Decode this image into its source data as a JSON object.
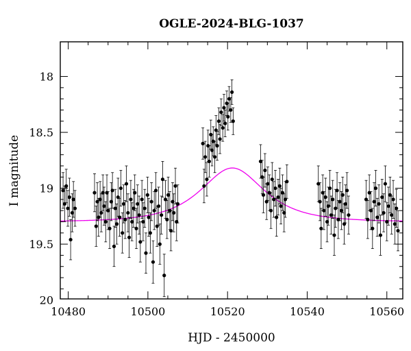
{
  "chart_data": {
    "type": "scatter",
    "title": "OGLE-2024-BLG-1037",
    "xlabel": "HJD - 2450000",
    "ylabel": "I magnitude",
    "xlim": [
      10478,
      10564
    ],
    "ylim": [
      19.99,
      17.69
    ],
    "y_inverted": true,
    "x_ticks": [
      10480,
      10500,
      10520,
      10540,
      10560
    ],
    "x_tick_labels": [
      "10480",
      "10500",
      "10520",
      "10540",
      "10560"
    ],
    "y_ticks": [
      18,
      18.5,
      19,
      19.5,
      20
    ],
    "y_tick_labels": [
      "18",
      "18.5",
      "19",
      "19.5",
      "20"
    ],
    "grid": false,
    "colors": {
      "data": "#000000",
      "model": "#ee00ee"
    },
    "series": [
      {
        "type": "errorbar",
        "points": [
          {
            "x": 10478.7,
            "y": 19.02,
            "err": 0.16
          },
          {
            "x": 10479.1,
            "y": 19.14,
            "err": 0.16
          },
          {
            "x": 10479.5,
            "y": 18.98,
            "err": 0.15
          },
          {
            "x": 10479.9,
            "y": 19.18,
            "err": 0.16
          },
          {
            "x": 10480.3,
            "y": 19.08,
            "err": 0.17
          },
          {
            "x": 10480.6,
            "y": 19.46,
            "err": 0.18
          },
          {
            "x": 10481.0,
            "y": 19.22,
            "err": 0.17
          },
          {
            "x": 10481.3,
            "y": 19.1,
            "err": 0.16
          },
          {
            "x": 10481.7,
            "y": 19.18,
            "err": 0.16
          },
          {
            "x": 10486.6,
            "y": 19.04,
            "err": 0.17
          },
          {
            "x": 10487.0,
            "y": 19.34,
            "err": 0.18
          },
          {
            "x": 10487.3,
            "y": 19.12,
            "err": 0.17
          },
          {
            "x": 10487.6,
            "y": 19.26,
            "err": 0.17
          },
          {
            "x": 10488.0,
            "y": 19.1,
            "err": 0.16
          },
          {
            "x": 10488.3,
            "y": 19.22,
            "err": 0.17
          },
          {
            "x": 10488.7,
            "y": 19.04,
            "err": 0.16
          },
          {
            "x": 10489.0,
            "y": 19.16,
            "err": 0.17
          },
          {
            "x": 10489.4,
            "y": 19.3,
            "err": 0.18
          },
          {
            "x": 10489.7,
            "y": 19.04,
            "err": 0.16
          },
          {
            "x": 10490.0,
            "y": 19.2,
            "err": 0.17
          },
          {
            "x": 10490.4,
            "y": 19.36,
            "err": 0.18
          },
          {
            "x": 10490.8,
            "y": 19.12,
            "err": 0.17
          },
          {
            "x": 10491.1,
            "y": 19.02,
            "err": 0.16
          },
          {
            "x": 10491.5,
            "y": 19.52,
            "err": 0.18
          },
          {
            "x": 10491.8,
            "y": 19.18,
            "err": 0.17
          },
          {
            "x": 10492.2,
            "y": 19.32,
            "err": 0.18
          },
          {
            "x": 10492.5,
            "y": 19.08,
            "err": 0.17
          },
          {
            "x": 10492.9,
            "y": 19.26,
            "err": 0.17
          },
          {
            "x": 10493.2,
            "y": 19.0,
            "err": 0.16
          },
          {
            "x": 10493.6,
            "y": 19.4,
            "err": 0.18
          },
          {
            "x": 10493.9,
            "y": 19.14,
            "err": 0.17
          },
          {
            "x": 10494.3,
            "y": 19.28,
            "err": 0.17
          },
          {
            "x": 10494.6,
            "y": 18.96,
            "err": 0.16
          },
          {
            "x": 10495.0,
            "y": 19.22,
            "err": 0.17
          },
          {
            "x": 10495.3,
            "y": 19.44,
            "err": 0.18
          },
          {
            "x": 10495.7,
            "y": 19.1,
            "err": 0.17
          },
          {
            "x": 10496.0,
            "y": 19.3,
            "err": 0.17
          },
          {
            "x": 10496.4,
            "y": 19.18,
            "err": 0.17
          },
          {
            "x": 10496.7,
            "y": 19.04,
            "err": 0.16
          },
          {
            "x": 10497.1,
            "y": 19.36,
            "err": 0.18
          },
          {
            "x": 10497.4,
            "y": 19.14,
            "err": 0.17
          },
          {
            "x": 10497.8,
            "y": 19.24,
            "err": 0.17
          },
          {
            "x": 10498.1,
            "y": 19.48,
            "err": 0.18
          },
          {
            "x": 10498.5,
            "y": 19.1,
            "err": 0.17
          },
          {
            "x": 10498.8,
            "y": 19.3,
            "err": 0.17
          },
          {
            "x": 10499.2,
            "y": 19.18,
            "err": 0.17
          },
          {
            "x": 10499.5,
            "y": 19.58,
            "err": 0.18
          },
          {
            "x": 10499.9,
            "y": 19.06,
            "err": 0.16
          },
          {
            "x": 10500.2,
            "y": 19.26,
            "err": 0.17
          },
          {
            "x": 10500.6,
            "y": 19.4,
            "err": 0.18
          },
          {
            "x": 10500.9,
            "y": 19.12,
            "err": 0.17
          },
          {
            "x": 10501.3,
            "y": 19.66,
            "err": 0.19
          },
          {
            "x": 10501.6,
            "y": 19.2,
            "err": 0.17
          },
          {
            "x": 10502.0,
            "y": 19.02,
            "err": 0.16
          },
          {
            "x": 10502.3,
            "y": 19.34,
            "err": 0.18
          },
          {
            "x": 10502.7,
            "y": 19.16,
            "err": 0.17
          },
          {
            "x": 10503.0,
            "y": 19.5,
            "err": 0.18
          },
          {
            "x": 10503.4,
            "y": 19.24,
            "err": 0.17
          },
          {
            "x": 10503.7,
            "y": 18.92,
            "err": 0.16
          },
          {
            "x": 10504.1,
            "y": 19.78,
            "err": 0.19
          },
          {
            "x": 10504.4,
            "y": 19.1,
            "err": 0.17
          },
          {
            "x": 10504.8,
            "y": 19.28,
            "err": 0.17
          },
          {
            "x": 10505.1,
            "y": 19.06,
            "err": 0.16
          },
          {
            "x": 10505.5,
            "y": 19.2,
            "err": 0.17
          },
          {
            "x": 10505.8,
            "y": 19.38,
            "err": 0.18
          },
          {
            "x": 10506.2,
            "y": 19.12,
            "err": 0.17
          },
          {
            "x": 10506.5,
            "y": 19.22,
            "err": 0.17
          },
          {
            "x": 10506.9,
            "y": 18.98,
            "err": 0.16
          },
          {
            "x": 10507.2,
            "y": 19.3,
            "err": 0.17
          },
          {
            "x": 10507.5,
            "y": 19.14,
            "err": 0.17
          },
          {
            "x": 10513.8,
            "y": 18.6,
            "err": 0.14
          },
          {
            "x": 10514.1,
            "y": 18.98,
            "err": 0.15
          },
          {
            "x": 10514.4,
            "y": 18.72,
            "err": 0.14
          },
          {
            "x": 10514.8,
            "y": 18.92,
            "err": 0.15
          },
          {
            "x": 10515.1,
            "y": 18.62,
            "err": 0.14
          },
          {
            "x": 10515.4,
            "y": 18.76,
            "err": 0.14
          },
          {
            "x": 10515.8,
            "y": 18.52,
            "err": 0.13
          },
          {
            "x": 10516.1,
            "y": 18.66,
            "err": 0.14
          },
          {
            "x": 10516.4,
            "y": 18.58,
            "err": 0.13
          },
          {
            "x": 10516.8,
            "y": 18.72,
            "err": 0.14
          },
          {
            "x": 10517.1,
            "y": 18.48,
            "err": 0.13
          },
          {
            "x": 10517.4,
            "y": 18.62,
            "err": 0.13
          },
          {
            "x": 10517.8,
            "y": 18.4,
            "err": 0.12
          },
          {
            "x": 10518.1,
            "y": 18.56,
            "err": 0.13
          },
          {
            "x": 10518.4,
            "y": 18.32,
            "err": 0.12
          },
          {
            "x": 10518.8,
            "y": 18.46,
            "err": 0.12
          },
          {
            "x": 10519.1,
            "y": 18.28,
            "err": 0.12
          },
          {
            "x": 10519.4,
            "y": 18.42,
            "err": 0.12
          },
          {
            "x": 10519.8,
            "y": 18.24,
            "err": 0.11
          },
          {
            "x": 10520.1,
            "y": 18.36,
            "err": 0.12
          },
          {
            "x": 10520.4,
            "y": 18.2,
            "err": 0.11
          },
          {
            "x": 10520.8,
            "y": 18.3,
            "err": 0.11
          },
          {
            "x": 10521.1,
            "y": 18.14,
            "err": 0.11
          },
          {
            "x": 10521.4,
            "y": 18.4,
            "err": 0.12
          },
          {
            "x": 10528.3,
            "y": 18.76,
            "err": 0.15
          },
          {
            "x": 10528.7,
            "y": 18.9,
            "err": 0.15
          },
          {
            "x": 10529.0,
            "y": 19.06,
            "err": 0.16
          },
          {
            "x": 10529.4,
            "y": 18.84,
            "err": 0.15
          },
          {
            "x": 10529.8,
            "y": 19.12,
            "err": 0.16
          },
          {
            "x": 10530.1,
            "y": 18.96,
            "err": 0.15
          },
          {
            "x": 10530.5,
            "y": 19.04,
            "err": 0.16
          },
          {
            "x": 10530.9,
            "y": 19.2,
            "err": 0.16
          },
          {
            "x": 10531.2,
            "y": 18.92,
            "err": 0.15
          },
          {
            "x": 10531.6,
            "y": 19.1,
            "err": 0.16
          },
          {
            "x": 10532.0,
            "y": 19.0,
            "err": 0.16
          },
          {
            "x": 10532.3,
            "y": 19.26,
            "err": 0.17
          },
          {
            "x": 10532.7,
            "y": 19.08,
            "err": 0.16
          },
          {
            "x": 10533.1,
            "y": 18.98,
            "err": 0.16
          },
          {
            "x": 10533.4,
            "y": 19.16,
            "err": 0.16
          },
          {
            "x": 10533.8,
            "y": 19.04,
            "err": 0.16
          },
          {
            "x": 10534.2,
            "y": 19.22,
            "err": 0.17
          },
          {
            "x": 10534.5,
            "y": 19.1,
            "err": 0.16
          },
          {
            "x": 10534.9,
            "y": 18.94,
            "err": 0.15
          },
          {
            "x": 10542.8,
            "y": 18.96,
            "err": 0.16
          },
          {
            "x": 10543.2,
            "y": 19.12,
            "err": 0.17
          },
          {
            "x": 10543.5,
            "y": 19.36,
            "err": 0.18
          },
          {
            "x": 10543.9,
            "y": 19.04,
            "err": 0.16
          },
          {
            "x": 10544.2,
            "y": 19.2,
            "err": 0.17
          },
          {
            "x": 10544.6,
            "y": 19.08,
            "err": 0.17
          },
          {
            "x": 10545.0,
            "y": 19.3,
            "err": 0.18
          },
          {
            "x": 10545.3,
            "y": 19.16,
            "err": 0.17
          },
          {
            "x": 10545.7,
            "y": 19.0,
            "err": 0.16
          },
          {
            "x": 10546.0,
            "y": 19.24,
            "err": 0.17
          },
          {
            "x": 10546.4,
            "y": 19.1,
            "err": 0.17
          },
          {
            "x": 10546.8,
            "y": 19.42,
            "err": 0.18
          },
          {
            "x": 10547.1,
            "y": 19.18,
            "err": 0.17
          },
          {
            "x": 10547.5,
            "y": 19.02,
            "err": 0.16
          },
          {
            "x": 10547.8,
            "y": 19.28,
            "err": 0.17
          },
          {
            "x": 10548.2,
            "y": 19.12,
            "err": 0.17
          },
          {
            "x": 10548.6,
            "y": 19.2,
            "err": 0.17
          },
          {
            "x": 10548.9,
            "y": 19.06,
            "err": 0.16
          },
          {
            "x": 10549.3,
            "y": 19.32,
            "err": 0.18
          },
          {
            "x": 10549.6,
            "y": 19.14,
            "err": 0.17
          },
          {
            "x": 10550.0,
            "y": 19.02,
            "err": 0.16
          },
          {
            "x": 10550.4,
            "y": 19.24,
            "err": 0.17
          },
          {
            "x": 10554.8,
            "y": 19.1,
            "err": 0.17
          },
          {
            "x": 10555.2,
            "y": 19.28,
            "err": 0.17
          },
          {
            "x": 10555.6,
            "y": 19.04,
            "err": 0.16
          },
          {
            "x": 10556.0,
            "y": 19.2,
            "err": 0.17
          },
          {
            "x": 10556.4,
            "y": 19.36,
            "err": 0.18
          },
          {
            "x": 10556.8,
            "y": 19.12,
            "err": 0.17
          },
          {
            "x": 10557.2,
            "y": 19.0,
            "err": 0.16
          },
          {
            "x": 10557.6,
            "y": 19.26,
            "err": 0.17
          },
          {
            "x": 10558.0,
            "y": 19.14,
            "err": 0.17
          },
          {
            "x": 10558.4,
            "y": 19.42,
            "err": 0.18
          },
          {
            "x": 10558.8,
            "y": 19.08,
            "err": 0.16
          },
          {
            "x": 10559.2,
            "y": 19.22,
            "err": 0.17
          },
          {
            "x": 10559.6,
            "y": 18.96,
            "err": 0.16
          },
          {
            "x": 10560.0,
            "y": 19.3,
            "err": 0.17
          },
          {
            "x": 10560.4,
            "y": 19.16,
            "err": 0.17
          },
          {
            "x": 10560.8,
            "y": 19.06,
            "err": 0.16
          },
          {
            "x": 10561.2,
            "y": 19.24,
            "err": 0.17
          },
          {
            "x": 10561.6,
            "y": 19.1,
            "err": 0.17
          },
          {
            "x": 10562.0,
            "y": 19.32,
            "err": 0.18
          },
          {
            "x": 10562.4,
            "y": 19.18,
            "err": 0.17
          },
          {
            "x": 10562.8,
            "y": 19.38,
            "err": 0.18
          }
        ]
      },
      {
        "type": "line",
        "model": "PSPL",
        "params": {
          "t0": 10521.2,
          "u0": 0.78,
          "tE": 11.0,
          "I_base": 19.3
        }
      }
    ]
  }
}
